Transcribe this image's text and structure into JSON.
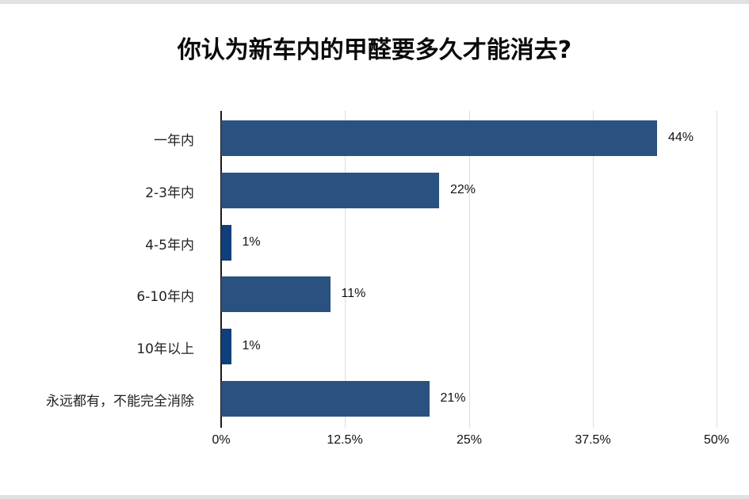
{
  "title": "你认为新车内的甲醛要多久才能消去?",
  "colors": {
    "bar": "#2a5280",
    "bar_small": "#0f3f7a",
    "grid": "#dcdcdc",
    "axis": "#1a1a1a"
  },
  "chart_data": {
    "type": "bar",
    "orientation": "horizontal",
    "title": "你认为新车内的甲醛要多久才能消去?",
    "categories": [
      "一年内",
      "2-3年内",
      "4-5年内",
      "6-10年内",
      "10年以上",
      "永远都有，不能完全消除"
    ],
    "values": [
      44,
      22,
      1,
      11,
      1,
      21
    ],
    "value_labels": [
      "44%",
      "22%",
      "1%",
      "11%",
      "1%",
      "21%"
    ],
    "xlabel": "",
    "ylabel": "",
    "xlim": [
      0,
      50
    ],
    "ticks": [
      "0%",
      "12.5%",
      "25%",
      "37.5%",
      "50%"
    ],
    "tick_values": [
      0,
      12.5,
      25,
      37.5,
      50
    ],
    "grid": true,
    "legend": "none"
  }
}
